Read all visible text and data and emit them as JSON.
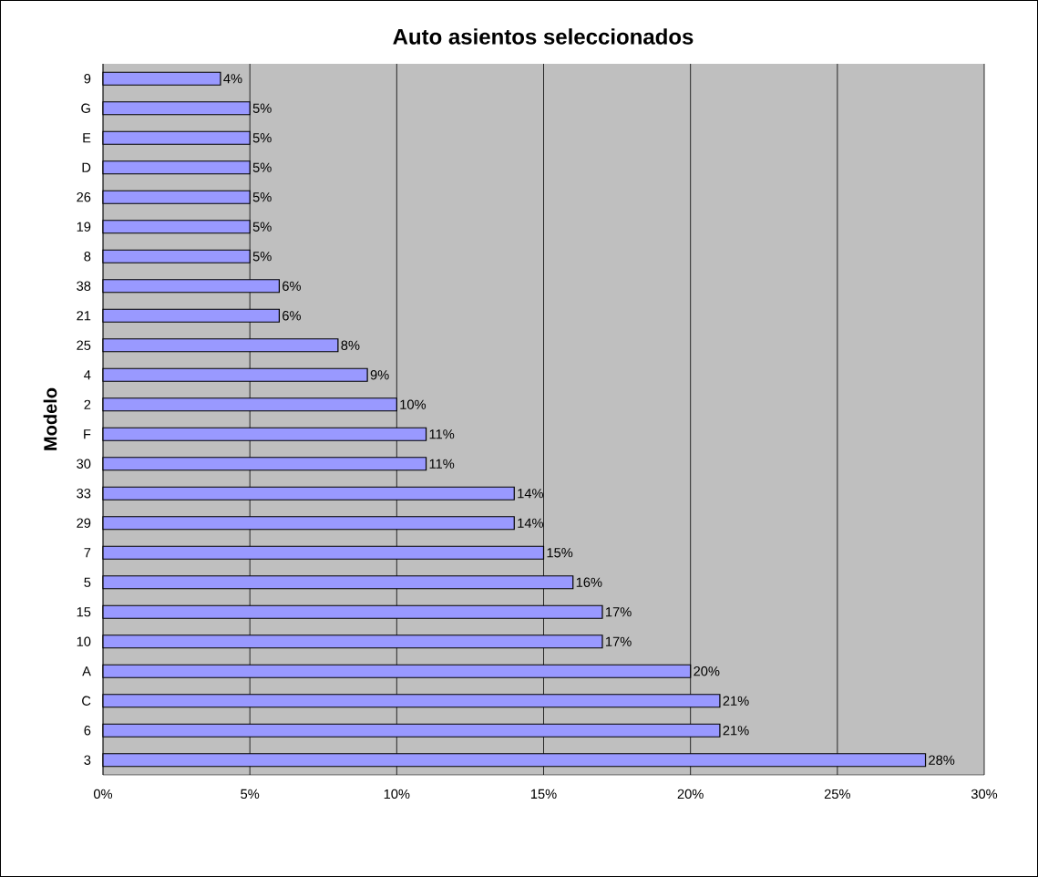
{
  "chart_data": {
    "type": "bar",
    "orientation": "horizontal",
    "title": "Auto asientos seleccionados",
    "ylabel": "Modelo",
    "categories": [
      "9",
      "G",
      "E",
      "D",
      "26",
      "19",
      "8",
      "38",
      "21",
      "25",
      "4",
      "2",
      "F",
      "30",
      "33",
      "29",
      "7",
      "5",
      "15",
      "10",
      "A",
      "C",
      "6",
      "3"
    ],
    "values": [
      4,
      5,
      5,
      5,
      5,
      5,
      5,
      6,
      6,
      8,
      9,
      10,
      11,
      11,
      14,
      14,
      15,
      16,
      17,
      17,
      20,
      21,
      21,
      28
    ],
    "value_labels": [
      "4%",
      "5%",
      "5%",
      "5%",
      "5%",
      "5%",
      "5%",
      "6%",
      "6%",
      "8%",
      "9%",
      "10%",
      "11%",
      "11%",
      "14%",
      "14%",
      "15%",
      "16%",
      "17%",
      "17%",
      "20%",
      "21%",
      "21%",
      "28%"
    ],
    "color": "#9999ff",
    "xlim": [
      0,
      30
    ],
    "xticks": [
      {
        "value": 0,
        "label": "0%"
      },
      {
        "value": 5,
        "label": "5%"
      },
      {
        "value": 10,
        "label": "10%"
      },
      {
        "value": 15,
        "label": "15%"
      },
      {
        "value": 20,
        "label": "20%"
      },
      {
        "value": 25,
        "label": "25%"
      },
      {
        "value": 30,
        "label": "30%"
      }
    ],
    "grid": "x"
  }
}
